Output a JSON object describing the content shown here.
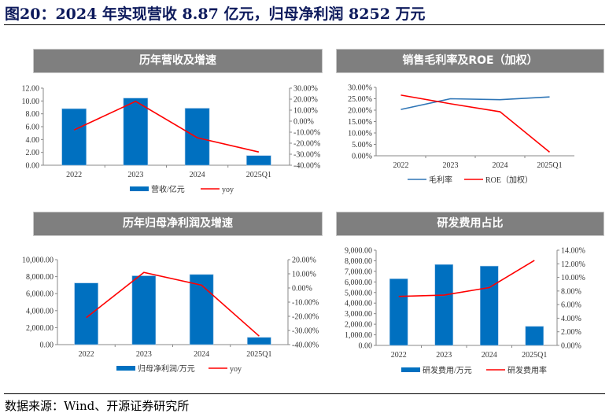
{
  "figure_title": "图20：2024 年实现营收 8.87 亿元，归母净利润 8252 万元",
  "source": "数据来源：Wind、开源证券研究所",
  "colors": {
    "bar": "#0070c0",
    "red_line": "#ff0000",
    "blue_line": "#2e75b6",
    "panel_title_bg": "#7f7f7f",
    "title": "#0d1a5c"
  },
  "chart_data": [
    {
      "title": "历年营收及增速",
      "type": "bar+line",
      "categories": [
        "2022",
        "2023",
        "2024",
        "2025Q1"
      ],
      "series": [
        {
          "name": "营收/亿元",
          "type": "bar",
          "axis": "left",
          "values": [
            8.8,
            10.45,
            8.87,
            1.5
          ]
        },
        {
          "name": "yoy",
          "type": "line",
          "axis": "right",
          "values": [
            -8.0,
            18.0,
            -15.0,
            -28.0
          ]
        }
      ],
      "left_axis": {
        "range": [
          0,
          12
        ],
        "ticks": [
          "0.00",
          "2.00",
          "4.00",
          "6.00",
          "8.00",
          "10.00",
          "12.00"
        ]
      },
      "right_axis": {
        "range": [
          -40,
          30
        ],
        "ticks": [
          "-40.00%",
          "-30.00%",
          "-20.00%",
          "-10.00%",
          "0.00%",
          "10.00%",
          "20.00%",
          "30.00%"
        ]
      },
      "legend": "bottom"
    },
    {
      "title": "销售毛利率及ROE（加权）",
      "type": "line",
      "categories": [
        "2022",
        "2023",
        "2024",
        "2025Q1"
      ],
      "series": [
        {
          "name": "毛利率",
          "type": "line",
          "axis": "left",
          "color": "#2e75b6",
          "values": [
            20.3,
            25.0,
            24.6,
            25.8
          ]
        },
        {
          "name": "ROE（加权）",
          "type": "line",
          "axis": "left",
          "color": "#ff0000",
          "values": [
            26.6,
            22.8,
            19.3,
            1.6
          ]
        }
      ],
      "left_axis": {
        "range": [
          0,
          30
        ],
        "ticks": [
          "0.00%",
          "5.00%",
          "10.00%",
          "15.00%",
          "20.00%",
          "25.00%",
          "30.00%"
        ]
      },
      "legend": "bottom"
    },
    {
      "title": "历年归母净利润及增速",
      "type": "bar+line",
      "categories": [
        "2022",
        "2023",
        "2024",
        "2025Q1"
      ],
      "series": [
        {
          "name": "归母净利润/万元",
          "type": "bar",
          "axis": "left",
          "values": [
            7250,
            8100,
            8252,
            850
          ]
        },
        {
          "name": "yoy",
          "type": "line",
          "axis": "right",
          "values": [
            -21.0,
            11.0,
            2.0,
            -34.0
          ]
        }
      ],
      "left_axis": {
        "range": [
          0,
          10000
        ],
        "ticks": [
          "0.00",
          "2,000.00",
          "4,000.00",
          "6,000.00",
          "8,000.00",
          "10,000.00"
        ]
      },
      "right_axis": {
        "range": [
          -40,
          20
        ],
        "ticks": [
          "-40.00%",
          "-30.00%",
          "-20.00%",
          "-10.00%",
          "0.00%",
          "10.00%",
          "20.00%"
        ]
      },
      "legend": "bottom"
    },
    {
      "title": "研发费用占比",
      "type": "bar+line",
      "categories": [
        "2022",
        "2023",
        "2024",
        "2025Q1"
      ],
      "series": [
        {
          "name": "研发费用/万元",
          "type": "bar",
          "axis": "left",
          "values": [
            6300,
            7650,
            7500,
            1800
          ]
        },
        {
          "name": "研发费用率",
          "type": "line",
          "axis": "right",
          "values": [
            7.2,
            7.4,
            8.5,
            12.5
          ]
        }
      ],
      "left_axis": {
        "range": [
          0,
          9000
        ],
        "ticks": [
          "0.00",
          "1,000.00",
          "2,000.00",
          "3,000.00",
          "4,000.00",
          "5,000.00",
          "6,000.00",
          "7,000.00",
          "8,000.00",
          "9,000.00"
        ]
      },
      "right_axis": {
        "range": [
          0,
          14
        ],
        "ticks": [
          "0.00%",
          "2.00%",
          "4.00%",
          "6.00%",
          "8.00%",
          "10.00%",
          "12.00%",
          "14.00%"
        ]
      },
      "legend": "bottom"
    }
  ]
}
